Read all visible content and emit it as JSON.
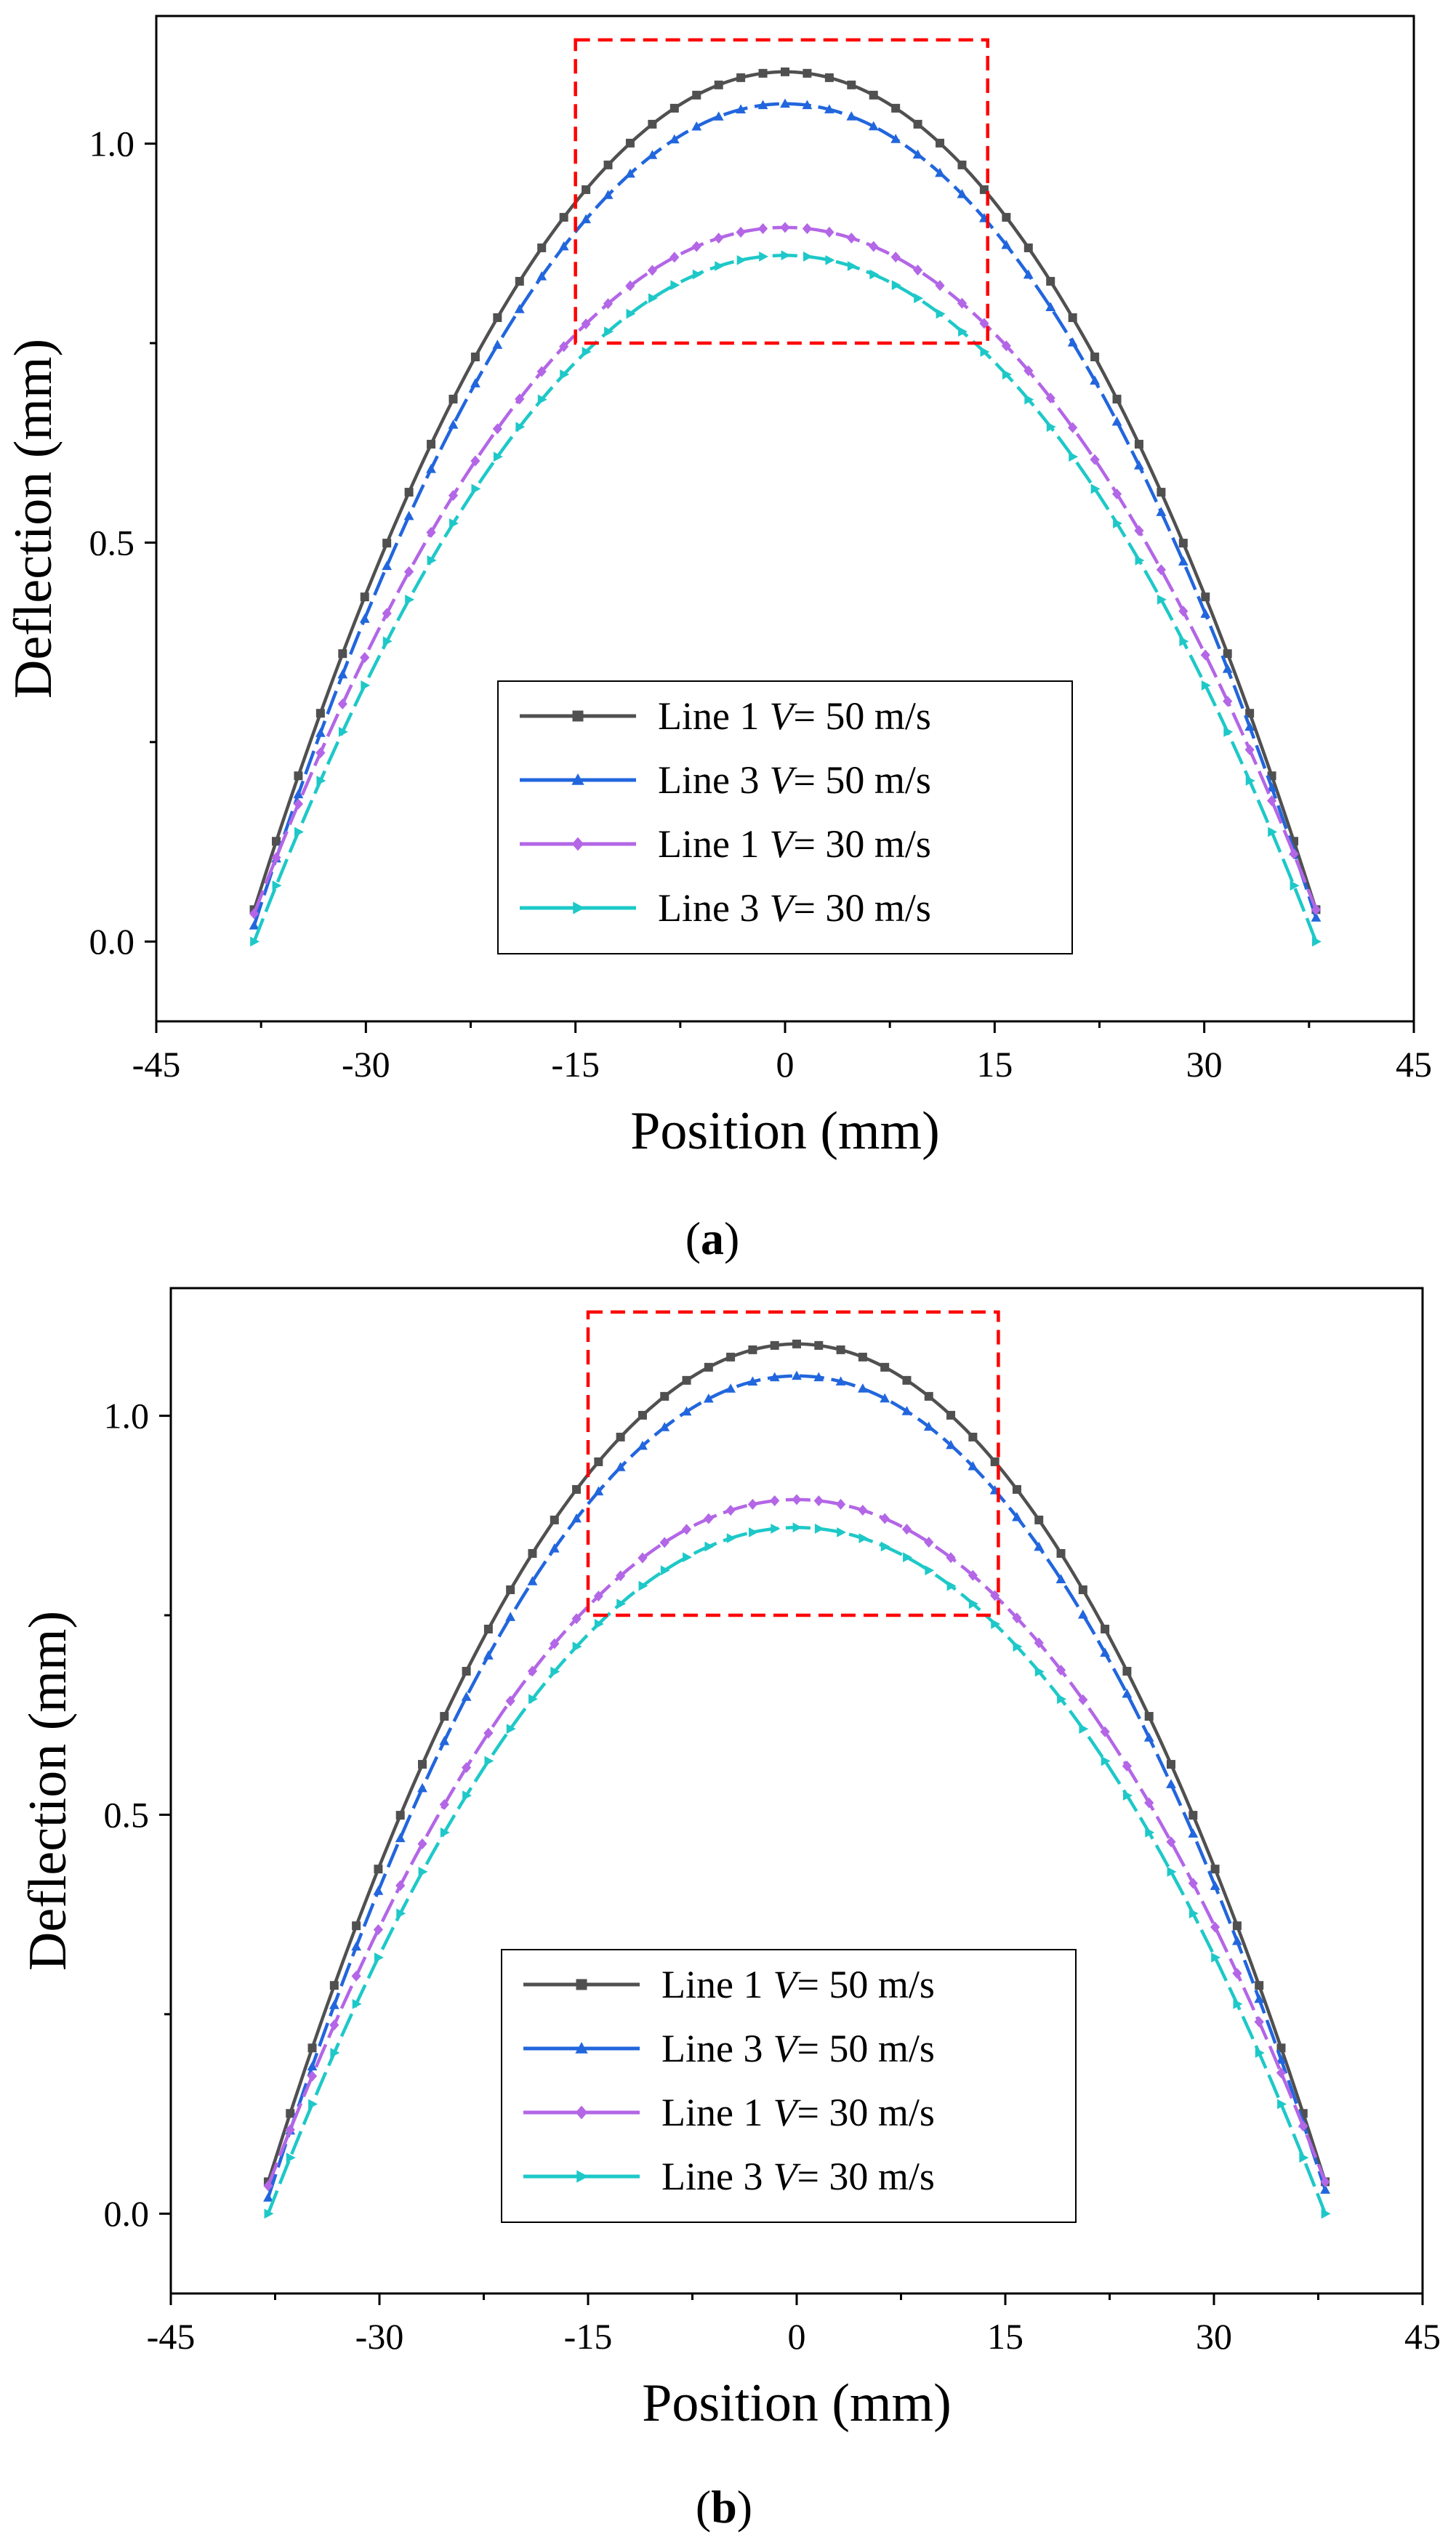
{
  "figure": {
    "panels": [
      {
        "label_letter": "a"
      },
      {
        "label_letter": "b"
      }
    ]
  },
  "chart_data": [
    {
      "type": "line",
      "panel": "a",
      "title": "",
      "xlabel": "Position (mm)",
      "ylabel": "Deflection (mm)",
      "xlim": [
        -45,
        45
      ],
      "ylim": [
        -0.1,
        1.16
      ],
      "xticks": [
        -45,
        -30,
        -15,
        0,
        15,
        30,
        45
      ],
      "xtick_labels": [
        "-45",
        "-30",
        "-15",
        "0",
        "15",
        "30",
        "45"
      ],
      "yticks": [
        0.0,
        0.5,
        1.0
      ],
      "ytick_labels": [
        "0.0",
        "0.5",
        "1.0"
      ],
      "x_range": [
        -38,
        38
      ],
      "legend_position": "lower-center",
      "highlight_box": {
        "x0": -15,
        "x1": 14.5,
        "y0": 0.75,
        "y1": 1.13,
        "color": "#ff0000",
        "style": "dashed"
      },
      "series": [
        {
          "name": "Line 1",
          "velocity_label": "V",
          "velocity_value": "= 50 m/s",
          "color": "#505050",
          "marker": "square",
          "peak": 1.09,
          "end_values": [
            0.04,
            0.04
          ]
        },
        {
          "name": "Line 3",
          "velocity_label": "V",
          "velocity_value": "= 50 m/s",
          "color": "#2266dd",
          "marker": "triangle-up",
          "peak": 1.05,
          "end_values": [
            0.02,
            0.03
          ]
        },
        {
          "name": "Line 1",
          "velocity_label": "V",
          "velocity_value": "= 30 m/s",
          "color": "#b366e6",
          "marker": "diamond",
          "peak": 0.895,
          "end_values": [
            0.035,
            0.04
          ]
        },
        {
          "name": "Line 3",
          "velocity_label": "V",
          "velocity_value": "= 30 m/s",
          "color": "#1ec8c8",
          "marker": "triangle-right",
          "peak": 0.86,
          "end_values": [
            0.0,
            0.0
          ]
        }
      ]
    },
    {
      "type": "line",
      "panel": "b",
      "title": "",
      "xlabel": "Position (mm)",
      "ylabel": "Deflection (mm)",
      "xlim": [
        -45,
        45
      ],
      "ylim": [
        -0.1,
        1.16
      ],
      "xticks": [
        -45,
        -30,
        -15,
        0,
        15,
        30,
        45
      ],
      "xtick_labels": [
        "-45",
        "-30",
        "-15",
        "0",
        "15",
        "30",
        "45"
      ],
      "yticks": [
        0.0,
        0.5,
        1.0
      ],
      "ytick_labels": [
        "0.0",
        "0.5",
        "1.0"
      ],
      "x_range": [
        -38,
        38
      ],
      "legend_position": "lower-center",
      "highlight_box": {
        "x0": -15,
        "x1": 14.5,
        "y0": 0.75,
        "y1": 1.13,
        "color": "#ff0000",
        "style": "dashed"
      },
      "series": [
        {
          "name": "Line 1",
          "velocity_label": "V",
          "velocity_value": "= 50 m/s",
          "color": "#505050",
          "marker": "square",
          "peak": 1.09,
          "end_values": [
            0.04,
            0.04
          ]
        },
        {
          "name": "Line 3",
          "velocity_label": "V",
          "velocity_value": "= 50 m/s",
          "color": "#2266dd",
          "marker": "triangle-up",
          "peak": 1.05,
          "end_values": [
            0.02,
            0.03
          ]
        },
        {
          "name": "Line 1",
          "velocity_label": "V",
          "velocity_value": "= 30 m/s",
          "color": "#b366e6",
          "marker": "diamond",
          "peak": 0.895,
          "end_values": [
            0.035,
            0.04
          ]
        },
        {
          "name": "Line 3",
          "velocity_label": "V",
          "velocity_value": "= 30 m/s",
          "color": "#1ec8c8",
          "marker": "triangle-right",
          "peak": 0.86,
          "end_values": [
            0.0,
            0.0
          ]
        }
      ]
    }
  ]
}
